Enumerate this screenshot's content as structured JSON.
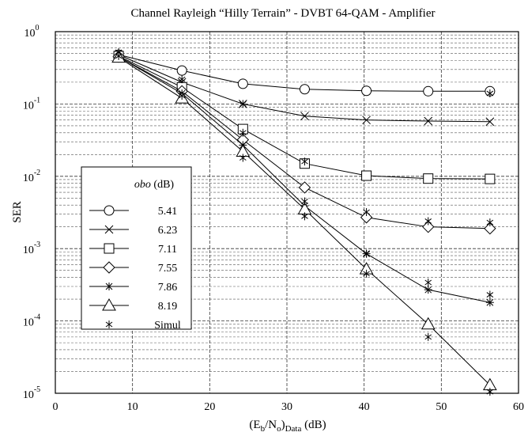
{
  "chart_data": {
    "type": "line",
    "title": "Channel Rayleigh “Hilly Terrain” - DVBT 64-QAM  - Amplifier",
    "xlabel": "(E",
    "xlabel_sub1": "b",
    "xlabel_mid": "/N",
    "xlabel_sub2": "o",
    "xlabel_end": ")",
    "xlabel_sub3": "Data",
    "xlabel_unit": "  (dB)",
    "ylabel": "SER",
    "xlim": [
      0,
      60
    ],
    "ylim": [
      1e-05,
      1
    ],
    "yscale": "log",
    "grid": true,
    "x_ticks": [
      "0",
      "10",
      "20",
      "30",
      "40",
      "50",
      "60"
    ],
    "y_ticks": [
      {
        "base": "10",
        "exp": "0"
      },
      {
        "base": "10",
        "exp": "-1"
      },
      {
        "base": "10",
        "exp": "-2"
      },
      {
        "base": "10",
        "exp": "-3"
      },
      {
        "base": "10",
        "exp": "-4"
      },
      {
        "base": "10",
        "exp": "-5"
      }
    ],
    "legend_title_italic": "obo",
    "legend_title_unit": " (dB)",
    "legend_location": "center-left",
    "series": [
      {
        "name": "5.41",
        "marker": "circle",
        "x": [
          8.2,
          16.4,
          24.3,
          32.3,
          40.3,
          48.3,
          56.3
        ],
        "y": [
          0.48,
          0.29,
          0.19,
          0.16,
          0.152,
          0.15,
          0.15
        ]
      },
      {
        "name": "6.23",
        "marker": "x",
        "x": [
          8.2,
          16.4,
          24.3,
          32.3,
          40.3,
          48.3,
          56.3
        ],
        "y": [
          0.48,
          0.2,
          0.1,
          0.068,
          0.06,
          0.058,
          0.057
        ]
      },
      {
        "name": "7.11",
        "marker": "square",
        "x": [
          8.2,
          16.4,
          24.3,
          32.3,
          40.3,
          48.3,
          56.3
        ],
        "y": [
          0.46,
          0.17,
          0.045,
          0.015,
          0.0102,
          0.0093,
          0.0092
        ]
      },
      {
        "name": "7.55",
        "marker": "diamond",
        "x": [
          8.2,
          16.4,
          24.3,
          32.3,
          40.3,
          48.3,
          56.3
        ],
        "y": [
          0.45,
          0.15,
          0.032,
          0.007,
          0.0027,
          0.002,
          0.0019
        ]
      },
      {
        "name": "7.86",
        "marker": "star",
        "x": [
          8.2,
          16.4,
          24.3,
          32.3,
          40.3,
          48.3,
          56.3
        ],
        "y": [
          0.45,
          0.14,
          0.027,
          0.0039,
          0.00085,
          0.00027,
          0.00018
        ]
      },
      {
        "name": "8.19",
        "marker": "triangle",
        "x": [
          8.2,
          16.4,
          24.3,
          32.3,
          40.3,
          48.3,
          56.3
        ],
        "y": [
          0.44,
          0.12,
          0.022,
          0.0035,
          0.00052,
          9e-05,
          1.3e-05
        ]
      },
      {
        "name": "Simul",
        "marker": "simul",
        "line": false,
        "x": [
          8.2,
          8.2,
          16.4,
          16.4,
          24.3,
          24.3,
          24.3,
          32.3,
          32.3,
          32.3,
          40.3,
          40.3,
          40.3,
          48.3,
          48.3,
          48.3,
          56.3,
          56.3,
          56.3,
          56.3
        ],
        "y": [
          0.52,
          0.46,
          0.22,
          0.13,
          0.1,
          0.04,
          0.018,
          0.016,
          0.0045,
          0.0028,
          0.0032,
          0.00045,
          0.00085,
          0.0024,
          0.00034,
          6e-05,
          0.14,
          0.0023,
          0.00023,
          1.05e-05
        ]
      }
    ]
  }
}
